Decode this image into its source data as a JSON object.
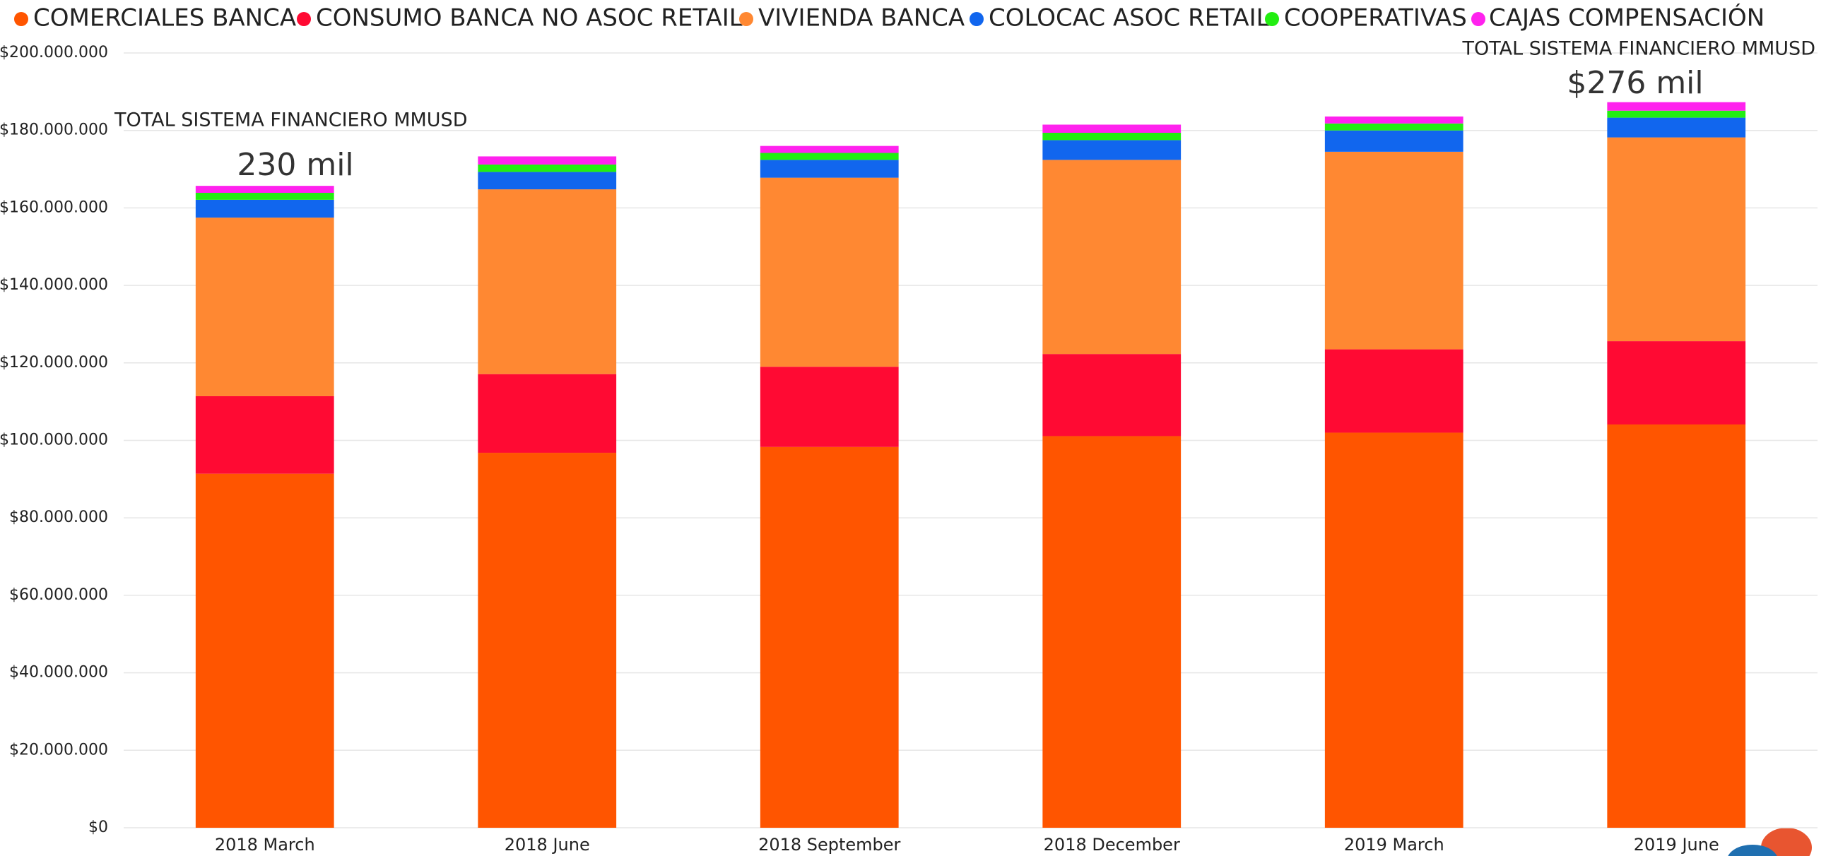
{
  "chart_data": {
    "type": "stacked_bar",
    "categories": [
      "2018 March",
      "2018 June",
      "2018 September",
      "2018 December",
      "2019 March",
      "2019 June"
    ],
    "series": [
      {
        "name": "COMERCIALES BANCA",
        "color": "#ff5500",
        "values": [
          91400000,
          96800000,
          98300000,
          101100000,
          102000000,
          104100000
        ]
      },
      {
        "name": "CONSUMO BANCA NO ASOC RETAIL",
        "color": "#ff0a33",
        "values": [
          20000000,
          20300000,
          20700000,
          21200000,
          21500000,
          21500000
        ]
      },
      {
        "name": "VIVIENDA BANCA",
        "color": "#ff8832",
        "values": [
          46100000,
          47700000,
          48800000,
          50100000,
          51000000,
          52600000
        ]
      },
      {
        "name": "COLOCAC ASOC RETAIL",
        "color": "#1166ee",
        "values": [
          4600000,
          4500000,
          4600000,
          5100000,
          5500000,
          5100000
        ]
      },
      {
        "name": "COOPERATIVAS",
        "color": "#22ee11",
        "values": [
          1800000,
          1900000,
          1800000,
          1900000,
          1800000,
          1800000
        ]
      },
      {
        "name": "CAJAS COMPENSACIÓN",
        "color": "#ff22ee",
        "values": [
          1800000,
          2100000,
          1800000,
          2100000,
          1800000,
          2200000
        ]
      }
    ],
    "ylim": [
      0,
      200000000
    ],
    "yticks": [
      {
        "value": 0,
        "label": "$0"
      },
      {
        "value": 20000000,
        "label": "$20.000.000"
      },
      {
        "value": 40000000,
        "label": "$40.000.000"
      },
      {
        "value": 60000000,
        "label": "$60.000.000"
      },
      {
        "value": 80000000,
        "label": "$80.000.000"
      },
      {
        "value": 100000000,
        "label": "$100.000.000"
      },
      {
        "value": 120000000,
        "label": "$120.000.000"
      },
      {
        "value": 140000000,
        "label": "$140.000.000"
      },
      {
        "value": 160000000,
        "label": "$160.000.000"
      },
      {
        "value": 180000000,
        "label": "$180.000.000"
      },
      {
        "value": 200000000,
        "label": "$200.000.000"
      }
    ],
    "grid": true,
    "annotations": [
      {
        "title": "TOTAL SISTEMA FINANCIERO MMUSD",
        "text": "230 mil"
      },
      {
        "title": "TOTAL SISTEMA FINANCIERO MMUSD",
        "text": "$276 mil"
      }
    ]
  }
}
